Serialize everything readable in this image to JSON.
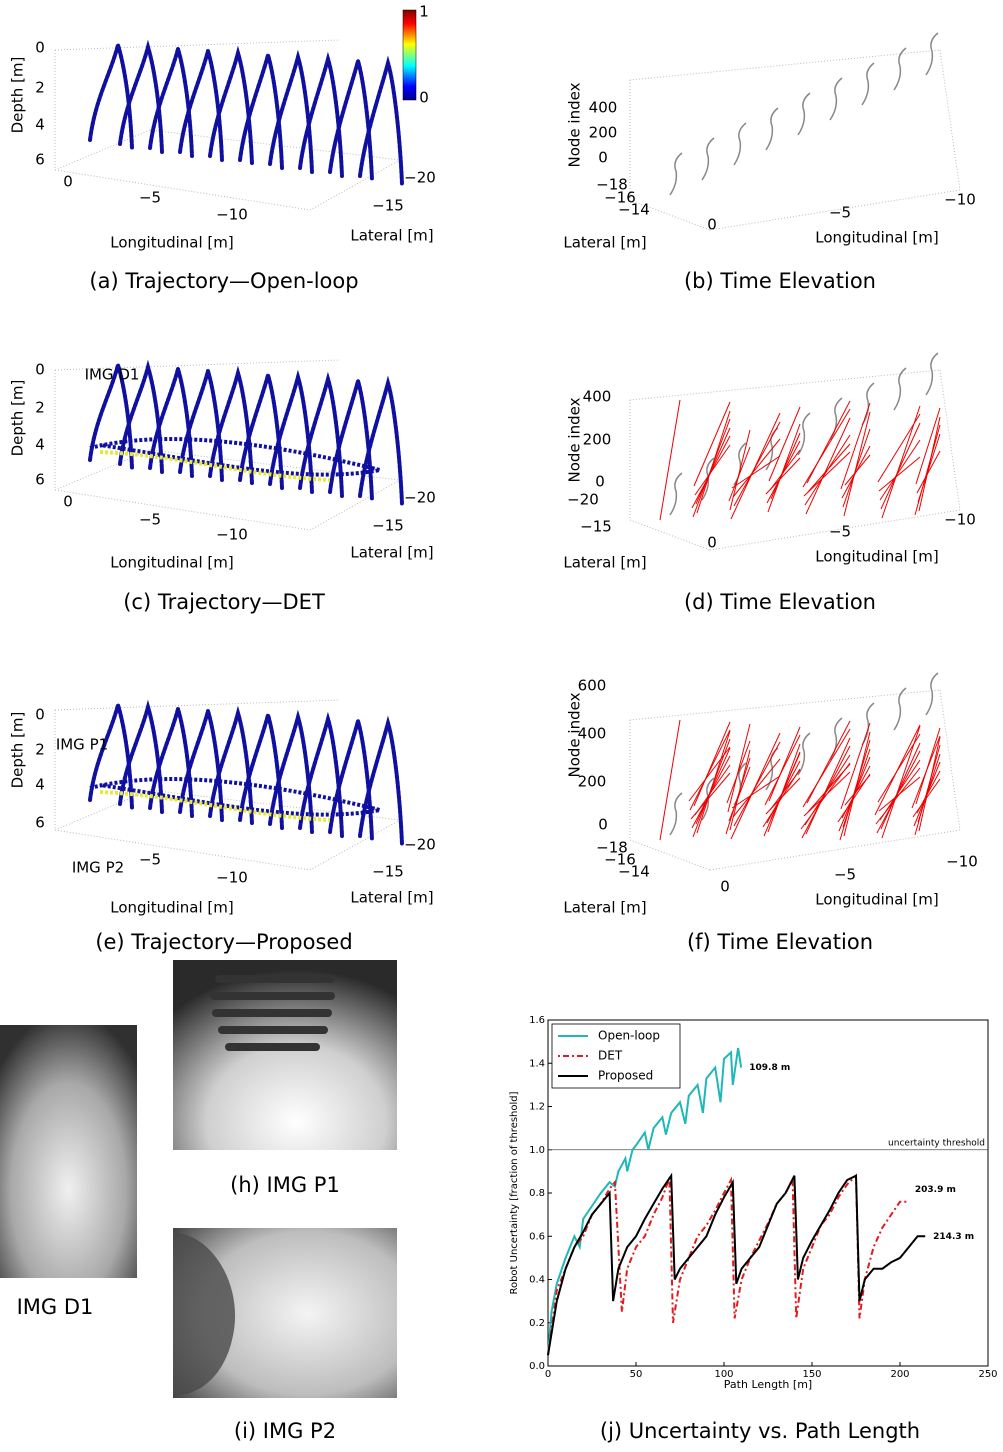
{
  "panels": [
    {
      "caption": "(a) Trajectory—Open-loop",
      "texts": [
        "Depth [m]",
        "0",
        "2",
        "4",
        "6",
        "0",
        "−5",
        "−10",
        "Longitudinal [m]",
        "−20",
        "−15",
        "Lateral [m]",
        "1",
        "0"
      ]
    },
    {
      "caption": "(b) Time Elevation",
      "texts": [
        "Node index",
        "400",
        "200",
        "0",
        "−18",
        "−16",
        "−14",
        "0",
        "−5",
        "−10",
        "Longitudinal [m]",
        "Lateral [m]"
      ]
    },
    {
      "caption": "(c) Trajectory—DET",
      "texts": [
        "Depth [m]",
        "0",
        "2",
        "4",
        "6",
        "0",
        "−5",
        "−10",
        "Longitudinal [m]",
        "−20",
        "−15",
        "Lateral [m]",
        "IMG D1"
      ]
    },
    {
      "caption": "(d) Time Elevation",
      "texts": [
        "Node index",
        "400",
        "200",
        "0",
        "−20",
        "−15",
        "0",
        "−5",
        "−10",
        "Longitudinal [m]",
        "Lateral [m]"
      ]
    },
    {
      "caption": "(e) Trajectory—Proposed",
      "texts": [
        "Depth [m]",
        "0",
        "2",
        "4",
        "6",
        "IMG P1",
        "IMG P2",
        "−5",
        "−10",
        "Longitudinal [m]",
        "−20",
        "−15",
        "Lateral [m]"
      ]
    },
    {
      "caption": "(f) Time Elevation",
      "texts": [
        "Node index",
        "600",
        "400",
        "200",
        "0",
        "−18",
        "−16",
        "−14",
        "0",
        "−5",
        "−10",
        "Longitudinal [m]",
        "Lateral [m]"
      ]
    }
  ],
  "images": [
    {
      "caption": "IMG D1"
    },
    {
      "caption": "(h) IMG P1"
    },
    {
      "caption": "(i) IMG P2"
    }
  ],
  "chart_data": {
    "type": "line",
    "caption": "(j) Uncertainty vs. Path Length",
    "x_label": "Path Length [m]",
    "y_label": "Robot Uncertainty [fraction of threshold]",
    "xlim": [
      0,
      250
    ],
    "xticks": [
      0,
      50,
      100,
      150,
      200,
      250
    ],
    "ylim": [
      0,
      1.6
    ],
    "yticks": [
      {
        "value": 0,
        "label": "0.0"
      },
      0.2,
      0.4,
      0.6,
      0.8,
      {
        "value": 1,
        "label": "1.0"
      },
      1.2,
      1.4,
      1.6
    ],
    "threshold": 1,
    "threshold_label": "uncertainty threshold",
    "legend": "upper left",
    "series": [
      {
        "name": "Open-loop",
        "color": "#1fb8b8",
        "end_label": "109.8 m",
        "x": [
          0,
          2,
          5,
          10,
          15,
          18,
          20,
          25,
          30,
          35,
          38,
          40,
          44,
          45,
          48,
          50,
          55,
          57,
          60,
          65,
          67,
          70,
          75,
          78,
          80,
          85,
          88,
          90,
          95,
          98,
          100,
          104,
          105,
          108,
          109.8
        ],
        "values": [
          0.05,
          0.25,
          0.38,
          0.5,
          0.6,
          0.55,
          0.68,
          0.74,
          0.8,
          0.85,
          0.83,
          0.9,
          0.96,
          0.9,
          1.0,
          1.02,
          1.08,
          1.0,
          1.1,
          1.15,
          1.07,
          1.17,
          1.22,
          1.12,
          1.25,
          1.3,
          1.17,
          1.33,
          1.38,
          1.22,
          1.42,
          1.45,
          1.3,
          1.47,
          1.38
        ]
      },
      {
        "name": "DET",
        "color": "#e41a1c",
        "end_label": "203.9 m",
        "x": [
          0,
          5,
          10,
          15,
          20,
          25,
          30,
          35,
          38,
          42,
          45,
          50,
          55,
          60,
          65,
          69,
          71,
          75,
          80,
          85,
          90,
          95,
          100,
          104,
          106,
          110,
          115,
          120,
          125,
          130,
          135,
          139,
          141,
          145,
          150,
          155,
          160,
          165,
          170,
          175,
          177,
          180,
          185,
          190,
          195,
          200,
          203.9
        ],
        "values": [
          0.05,
          0.35,
          0.45,
          0.55,
          0.6,
          0.7,
          0.75,
          0.82,
          0.85,
          0.25,
          0.45,
          0.55,
          0.6,
          0.7,
          0.78,
          0.87,
          0.2,
          0.4,
          0.5,
          0.6,
          0.65,
          0.72,
          0.8,
          0.86,
          0.22,
          0.4,
          0.5,
          0.58,
          0.66,
          0.75,
          0.8,
          0.86,
          0.22,
          0.45,
          0.55,
          0.65,
          0.7,
          0.78,
          0.84,
          0.88,
          0.22,
          0.4,
          0.55,
          0.64,
          0.7,
          0.76,
          0.76
        ]
      },
      {
        "name": "Proposed",
        "color": "#000000",
        "end_label": "214.3 m",
        "x": [
          0,
          5,
          10,
          15,
          20,
          25,
          30,
          35,
          37,
          40,
          45,
          50,
          55,
          60,
          65,
          70,
          72,
          75,
          80,
          85,
          90,
          95,
          100,
          105,
          107,
          110,
          115,
          120,
          125,
          130,
          135,
          140,
          142,
          145,
          150,
          155,
          160,
          165,
          170,
          175,
          177,
          180,
          185,
          190,
          195,
          200,
          205,
          210,
          214.3
        ],
        "values": [
          0.05,
          0.3,
          0.45,
          0.55,
          0.62,
          0.7,
          0.75,
          0.8,
          0.3,
          0.45,
          0.55,
          0.6,
          0.68,
          0.75,
          0.82,
          0.88,
          0.4,
          0.45,
          0.5,
          0.55,
          0.6,
          0.7,
          0.78,
          0.85,
          0.38,
          0.45,
          0.5,
          0.55,
          0.65,
          0.75,
          0.8,
          0.88,
          0.4,
          0.5,
          0.58,
          0.65,
          0.72,
          0.8,
          0.86,
          0.88,
          0.3,
          0.4,
          0.45,
          0.45,
          0.48,
          0.5,
          0.55,
          0.6,
          0.6
        ]
      }
    ]
  }
}
